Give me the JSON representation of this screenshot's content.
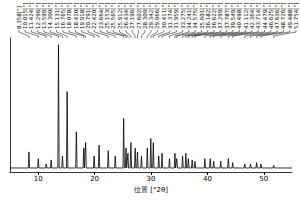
{
  "chart_data": {
    "type": "line",
    "x_label": "位置 [°2θ]",
    "color": "#000000",
    "xlim": [
      5,
      55
    ],
    "xticks": [
      10,
      20,
      30,
      40,
      50
    ],
    "ylim": [
      0,
      100
    ],
    "grid": false,
    "tick_labels": "x",
    "x": [
      5,
      8.238,
      8.358,
      8.478,
      9.895,
      10.015,
      10.135,
      11.304,
      11.424,
      11.544,
      12.176,
      12.296,
      12.416,
      13.479,
      13.599,
      13.719,
      14.18,
      14.3,
      14.42,
      15.011,
      15.131,
      15.251,
      16.645,
      16.765,
      16.885,
      17.958,
      18.078,
      18.198,
      18.29,
      18.41,
      18.53,
      19.798,
      19.918,
      20.038,
      20.671,
      20.791,
      20.911,
      22.3,
      22.42,
      22.54,
      23.544,
      23.664,
      23.784,
      25.033,
      25.153,
      25.273,
      25.445,
      25.565,
      25.685,
      25.792,
      25.912,
      26.032,
      26.314,
      26.434,
      26.554,
      27.076,
      27.196,
      27.316,
      27.482,
      27.602,
      27.722,
      28.189,
      28.309,
      28.429,
      29.222,
      29.342,
      29.462,
      29.846,
      29.966,
      30.086,
      30.291,
      30.411,
      30.531,
      31.254,
      31.374,
      31.494,
      31.839,
      31.959,
      32.079,
      33.155,
      33.275,
      33.395,
      34.121,
      34.241,
      34.361,
      34.455,
      34.575,
      34.695,
      35.481,
      35.601,
      35.721,
      36.062,
      36.182,
      36.302,
      36.502,
      36.622,
      36.742,
      37.179,
      37.299,
      37.419,
      37.667,
      37.787,
      37.907,
      39.429,
      39.549,
      39.669,
      40.378,
      40.498,
      40.618,
      40.992,
      41.112,
      41.232,
      42.244,
      42.364,
      42.484,
      43.594,
      43.714,
      43.834,
      44.359,
      44.479,
      44.599,
      46.505,
      46.625,
      46.745,
      47.516,
      47.636,
      47.756,
      48.606,
      48.726,
      48.846,
      49.368,
      49.488,
      49.608,
      51.634,
      51.754,
      51.874,
      55
    ],
    "values": [
      3,
      3,
      15,
      3,
      3,
      10,
      3,
      3,
      6,
      3,
      3,
      9,
      3,
      3,
      95,
      3,
      3,
      12,
      3,
      3,
      60,
      3,
      3,
      30,
      3,
      3,
      18,
      3,
      3,
      22,
      3,
      3,
      12,
      3,
      3,
      20,
      3,
      3,
      16,
      3,
      3,
      12,
      3,
      3,
      40,
      3,
      3,
      18,
      3,
      3,
      14,
      3,
      3,
      22,
      3,
      3,
      18,
      3,
      3,
      15,
      3,
      3,
      12,
      3,
      3,
      18,
      3,
      3,
      25,
      3,
      3,
      22,
      3,
      3,
      12,
      3,
      3,
      14,
      3,
      3,
      10,
      3,
      3,
      14,
      3,
      3,
      10,
      3,
      3,
      12,
      3,
      3,
      14,
      3,
      3,
      10,
      3,
      3,
      9,
      3,
      3,
      8,
      3,
      3,
      10,
      3,
      3,
      10,
      3,
      3,
      8,
      3,
      3,
      8,
      3,
      3,
      10,
      3,
      3,
      7,
      3,
      3,
      6,
      3,
      3,
      6,
      3,
      3,
      7,
      3,
      3,
      6,
      3,
      3,
      5,
      3,
      3
    ],
    "peaks": [
      {
        "x": 8.358,
        "label": "8.358[°]"
      },
      {
        "x": 10.015,
        "label": "10.015[°]"
      },
      {
        "x": 11.424,
        "label": "11.424[°]"
      },
      {
        "x": 12.296,
        "label": "12.296[°]"
      },
      {
        "x": 13.599,
        "label": "13.599[°]"
      },
      {
        "x": 14.3,
        "label": "14.300[°]"
      },
      {
        "x": 15.131,
        "label": "15.131[°]"
      },
      {
        "x": 16.765,
        "label": "16.765[°]"
      },
      {
        "x": 18.078,
        "label": "18.078[°]"
      },
      {
        "x": 18.41,
        "label": "18.410[°]"
      },
      {
        "x": 19.918,
        "label": "19.918[°]"
      },
      {
        "x": 20.791,
        "label": "20.791[°]"
      },
      {
        "x": 22.42,
        "label": "22.420[°]"
      },
      {
        "x": 23.664,
        "label": "23.664[°]"
      },
      {
        "x": 25.153,
        "label": "25.153[°]"
      },
      {
        "x": 25.565,
        "label": "25.565[°]"
      },
      {
        "x": 25.912,
        "label": "25.912[°]"
      },
      {
        "x": 26.434,
        "label": "26.434[°]"
      },
      {
        "x": 27.196,
        "label": "27.196[°]"
      },
      {
        "x": 27.602,
        "label": "27.602[°]"
      },
      {
        "x": 28.309,
        "label": "28.309[°]"
      },
      {
        "x": 29.342,
        "label": "29.342[°]"
      },
      {
        "x": 29.966,
        "label": "29.966[°]"
      },
      {
        "x": 30.411,
        "label": "30.411[°]"
      },
      {
        "x": 31.374,
        "label": "31.374[°]"
      },
      {
        "x": 31.959,
        "label": "31.959[°]"
      },
      {
        "x": 33.275,
        "label": "33.275[°]"
      },
      {
        "x": 34.241,
        "label": "34.241[°]"
      },
      {
        "x": 34.575,
        "label": "34.575[°]"
      },
      {
        "x": 35.601,
        "label": "35.601[°]"
      },
      {
        "x": 36.182,
        "label": "36.182[°]"
      },
      {
        "x": 36.622,
        "label": "36.622[°]"
      },
      {
        "x": 37.299,
        "label": "37.299[°]"
      },
      {
        "x": 37.787,
        "label": "37.787[°]"
      },
      {
        "x": 39.549,
        "label": "39.549[°]"
      },
      {
        "x": 40.498,
        "label": "40.498[°]"
      },
      {
        "x": 41.112,
        "label": "41.112[°]"
      },
      {
        "x": 42.364,
        "label": "42.364[°]"
      },
      {
        "x": 43.714,
        "label": "43.714[°]"
      },
      {
        "x": 44.479,
        "label": "44.479[°]"
      },
      {
        "x": 46.625,
        "label": "46.625[°]"
      },
      {
        "x": 47.636,
        "label": "47.636[°]"
      },
      {
        "x": 48.726,
        "label": "48.726[°]"
      },
      {
        "x": 49.488,
        "label": "49.488[°]"
      },
      {
        "x": 51.754,
        "label": "51.754[°]"
      }
    ]
  }
}
